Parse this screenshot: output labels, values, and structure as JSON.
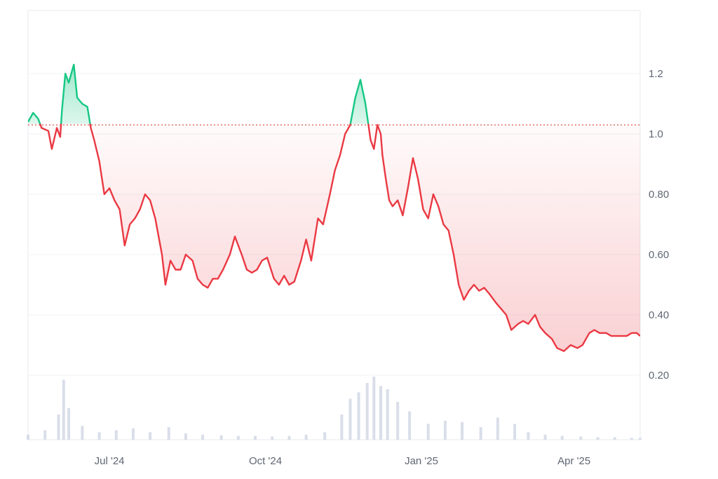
{
  "chart_data": {
    "type": "area",
    "baseline": 1.03,
    "y_ticks": [
      {
        "value": 1.2,
        "label": "1.2"
      },
      {
        "value": 1.0,
        "label": "1.0"
      },
      {
        "value": 0.8,
        "label": "0.80"
      },
      {
        "value": 0.6,
        "label": "0.60"
      },
      {
        "value": 0.4,
        "label": "0.40"
      },
      {
        "value": 0.2,
        "label": "0.20"
      }
    ],
    "x_ticks": [
      {
        "date": "2024-07-01",
        "label": "Jul '24"
      },
      {
        "date": "2024-10-01",
        "label": "Oct '24"
      },
      {
        "date": "2025-01-01",
        "label": "Jan '25"
      },
      {
        "date": "2025-04-01",
        "label": "Apr '25"
      }
    ],
    "colors": {
      "up": "#16c784",
      "down": "#ea3943",
      "volume": "#cfd6e4",
      "grid": "#eff2f5",
      "baseline": "#d9534f"
    },
    "grid": true,
    "price_series": {
      "name": "",
      "x": [
        "2024-05-14",
        "2024-05-17",
        "2024-05-20",
        "2024-05-22",
        "2024-05-26",
        "2024-05-28",
        "2024-05-31",
        "2024-06-02",
        "2024-06-03",
        "2024-06-05",
        "2024-06-07",
        "2024-06-10",
        "2024-06-12",
        "2024-06-15",
        "2024-06-18",
        "2024-06-20",
        "2024-06-22",
        "2024-06-25",
        "2024-06-28",
        "2024-07-01",
        "2024-07-04",
        "2024-07-07",
        "2024-07-10",
        "2024-07-13",
        "2024-07-16",
        "2024-07-19",
        "2024-07-22",
        "2024-07-25",
        "2024-07-28",
        "2024-08-01",
        "2024-08-03",
        "2024-08-06",
        "2024-08-09",
        "2024-08-12",
        "2024-08-15",
        "2024-08-19",
        "2024-08-22",
        "2024-08-25",
        "2024-08-28",
        "2024-08-31",
        "2024-09-03",
        "2024-09-06",
        "2024-09-10",
        "2024-09-13",
        "2024-09-17",
        "2024-09-20",
        "2024-09-23",
        "2024-09-26",
        "2024-09-29",
        "2024-10-02",
        "2024-10-06",
        "2024-10-09",
        "2024-10-12",
        "2024-10-15",
        "2024-10-18",
        "2024-10-22",
        "2024-10-25",
        "2024-10-28",
        "2024-11-01",
        "2024-11-04",
        "2024-11-08",
        "2024-11-11",
        "2024-11-14",
        "2024-11-17",
        "2024-11-20",
        "2024-11-23",
        "2024-11-26",
        "2024-11-29",
        "2024-12-02",
        "2024-12-04",
        "2024-12-06",
        "2024-12-08",
        "2024-12-09",
        "2024-12-11",
        "2024-12-13",
        "2024-12-15",
        "2024-12-18",
        "2024-12-21",
        "2024-12-24",
        "2024-12-27",
        "2024-12-30",
        "2025-01-02",
        "2025-01-05",
        "2025-01-08",
        "2025-01-11",
        "2025-01-14",
        "2025-01-17",
        "2025-01-20",
        "2025-01-23",
        "2025-01-26",
        "2025-01-29",
        "2025-02-01",
        "2025-02-04",
        "2025-02-07",
        "2025-02-10",
        "2025-02-14",
        "2025-02-17",
        "2025-02-20",
        "2025-02-23",
        "2025-02-27",
        "2025-03-02",
        "2025-03-05",
        "2025-03-09",
        "2025-03-12",
        "2025-03-15",
        "2025-03-19",
        "2025-03-22",
        "2025-03-26",
        "2025-03-30",
        "2025-04-03",
        "2025-04-06",
        "2025-04-08",
        "2025-04-10",
        "2025-04-13",
        "2025-04-16",
        "2025-04-20",
        "2025-04-23",
        "2025-04-26",
        "2025-04-29",
        "2025-05-02",
        "2025-05-05",
        "2025-05-08",
        "2025-05-10"
      ],
      "y": [
        1.04,
        1.07,
        1.05,
        1.02,
        1.01,
        0.95,
        1.02,
        0.99,
        1.08,
        1.2,
        1.17,
        1.23,
        1.12,
        1.1,
        1.09,
        1.02,
        0.98,
        0.91,
        0.8,
        0.82,
        0.78,
        0.75,
        0.63,
        0.7,
        0.72,
        0.75,
        0.8,
        0.78,
        0.72,
        0.6,
        0.5,
        0.58,
        0.55,
        0.55,
        0.6,
        0.58,
        0.52,
        0.5,
        0.49,
        0.52,
        0.52,
        0.55,
        0.6,
        0.66,
        0.6,
        0.55,
        0.54,
        0.55,
        0.58,
        0.59,
        0.52,
        0.5,
        0.53,
        0.5,
        0.51,
        0.58,
        0.65,
        0.58,
        0.72,
        0.7,
        0.8,
        0.88,
        0.93,
        1.0,
        1.03,
        1.12,
        1.18,
        1.1,
        0.98,
        0.95,
        1.03,
        1.0,
        0.93,
        0.85,
        0.78,
        0.76,
        0.78,
        0.73,
        0.82,
        0.92,
        0.85,
        0.75,
        0.72,
        0.8,
        0.76,
        0.7,
        0.68,
        0.6,
        0.5,
        0.45,
        0.48,
        0.5,
        0.48,
        0.49,
        0.47,
        0.44,
        0.42,
        0.4,
        0.35,
        0.37,
        0.38,
        0.37,
        0.4,
        0.36,
        0.34,
        0.32,
        0.29,
        0.28,
        0.3,
        0.29,
        0.3,
        0.32,
        0.34,
        0.35,
        0.34,
        0.34,
        0.33,
        0.33,
        0.33,
        0.33,
        0.34,
        0.34,
        0.33
      ]
    },
    "volume_series": {
      "x": [
        "2024-05-14",
        "2024-05-24",
        "2024-06-01",
        "2024-06-04",
        "2024-06-07",
        "2024-06-15",
        "2024-06-25",
        "2024-07-05",
        "2024-07-15",
        "2024-07-25",
        "2024-08-05",
        "2024-08-15",
        "2024-08-25",
        "2024-09-05",
        "2024-09-15",
        "2024-09-25",
        "2024-10-05",
        "2024-10-15",
        "2024-10-25",
        "2024-11-05",
        "2024-11-15",
        "2024-11-20",
        "2024-11-25",
        "2024-11-30",
        "2024-12-04",
        "2024-12-08",
        "2024-12-12",
        "2024-12-18",
        "2024-12-25",
        "2025-01-05",
        "2025-01-15",
        "2025-01-25",
        "2025-02-05",
        "2025-02-15",
        "2025-02-25",
        "2025-03-05",
        "2025-03-15",
        "2025-03-25",
        "2025-04-05",
        "2025-04-15",
        "2025-04-25",
        "2025-05-05",
        "2025-05-10"
      ],
      "values": [
        0.08,
        0.15,
        0.4,
        0.95,
        0.5,
        0.22,
        0.12,
        0.15,
        0.18,
        0.12,
        0.2,
        0.1,
        0.08,
        0.07,
        0.06,
        0.06,
        0.05,
        0.06,
        0.08,
        0.12,
        0.4,
        0.65,
        0.75,
        0.9,
        1.0,
        0.85,
        0.8,
        0.6,
        0.45,
        0.25,
        0.3,
        0.28,
        0.2,
        0.35,
        0.25,
        0.12,
        0.08,
        0.06,
        0.05,
        0.04,
        0.04,
        0.03,
        0.03
      ]
    }
  }
}
